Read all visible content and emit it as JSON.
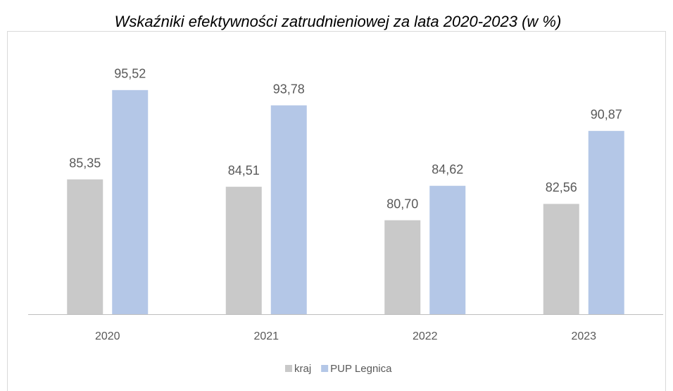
{
  "chart_data": {
    "type": "bar",
    "title": "Wskaźniki efektywności zatrudnieniowej za lata 2020-2023 (w %)",
    "categories": [
      "2020",
      "2021",
      "2022",
      "2023"
    ],
    "series": [
      {
        "name": "kraj",
        "color": "#c9c9c9",
        "values": [
          85.35,
          84.51,
          80.7,
          82.56
        ],
        "value_labels": [
          "85,35",
          "84,51",
          "80,70",
          "82,56"
        ]
      },
      {
        "name": "PUP Legnica",
        "color": "#b4c7e7",
        "values": [
          95.52,
          93.78,
          84.62,
          90.87
        ],
        "value_labels": [
          "95,52",
          "93,78",
          "84,62",
          "90,87"
        ]
      }
    ],
    "ylim": [
      70,
      100
    ],
    "legend": "bottom"
  }
}
